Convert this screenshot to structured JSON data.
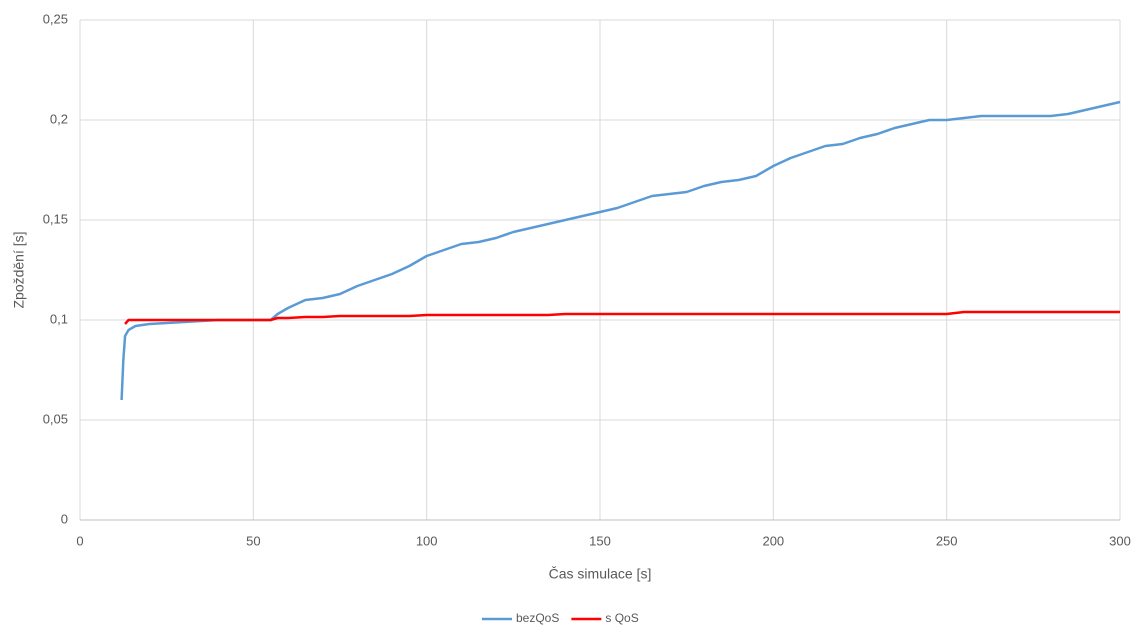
{
  "chart_data": {
    "type": "line",
    "xlabel": "Čas simulace [s]",
    "ylabel": "Zpoždění [s]",
    "x": [
      12,
      12.5,
      13,
      14,
      16,
      20,
      30,
      40,
      50,
      55,
      57,
      60,
      65,
      70,
      75,
      80,
      85,
      90,
      95,
      100,
      105,
      110,
      115,
      120,
      125,
      130,
      135,
      140,
      145,
      150,
      155,
      160,
      165,
      170,
      175,
      180,
      185,
      190,
      195,
      200,
      205,
      210,
      215,
      220,
      225,
      230,
      235,
      240,
      245,
      250,
      255,
      260,
      265,
      270,
      275,
      280,
      285,
      290,
      295,
      300
    ],
    "series": [
      {
        "name": "bezQoS",
        "color": "#5b9bd5",
        "values": [
          0.06,
          0.08,
          0.092,
          0.095,
          0.097,
          0.098,
          0.099,
          0.1,
          0.1,
          0.1,
          0.103,
          0.106,
          0.11,
          0.111,
          0.113,
          0.117,
          0.12,
          0.123,
          0.127,
          0.132,
          0.135,
          0.138,
          0.139,
          0.141,
          0.144,
          0.146,
          0.148,
          0.15,
          0.152,
          0.154,
          0.156,
          0.159,
          0.162,
          0.163,
          0.164,
          0.167,
          0.169,
          0.17,
          0.172,
          0.177,
          0.181,
          0.184,
          0.187,
          0.188,
          0.191,
          0.193,
          0.196,
          0.198,
          0.2,
          0.2,
          0.201,
          0.202,
          0.202,
          0.202,
          0.202,
          0.202,
          0.203,
          0.205,
          0.207,
          0.209
        ]
      },
      {
        "name": "s QoS",
        "color": "#ff0000",
        "values": [
          null,
          null,
          0.098,
          0.1,
          0.1,
          0.1,
          0.1,
          0.1,
          0.1,
          0.1,
          0.101,
          0.101,
          0.1015,
          0.1015,
          0.102,
          0.102,
          0.102,
          0.102,
          0.102,
          0.1025,
          0.1025,
          0.1025,
          0.1025,
          0.1025,
          0.1025,
          0.1025,
          0.1025,
          0.103,
          0.103,
          0.103,
          0.103,
          0.103,
          0.103,
          0.103,
          0.103,
          0.103,
          0.103,
          0.103,
          0.103,
          0.103,
          0.103,
          0.103,
          0.103,
          0.103,
          0.103,
          0.103,
          0.103,
          0.103,
          0.103,
          0.103,
          0.104,
          0.104,
          0.104,
          0.104,
          0.104,
          0.104,
          0.104,
          0.104,
          0.104,
          0.104
        ]
      }
    ],
    "xlim": [
      0,
      300
    ],
    "xticks": [
      0,
      50,
      100,
      150,
      200,
      250,
      300
    ],
    "ylim": [
      0,
      0.25
    ],
    "yticks": [
      0,
      {
        "value": 0.05,
        "label": "0,05"
      },
      {
        "value": 0.1,
        "label": "0,1"
      },
      {
        "value": 0.15,
        "label": "0,15"
      },
      {
        "value": 0.2,
        "label": "0,2"
      },
      {
        "value": 0.25,
        "label": "0,25"
      }
    ],
    "grid": true,
    "legend": "bottom"
  }
}
